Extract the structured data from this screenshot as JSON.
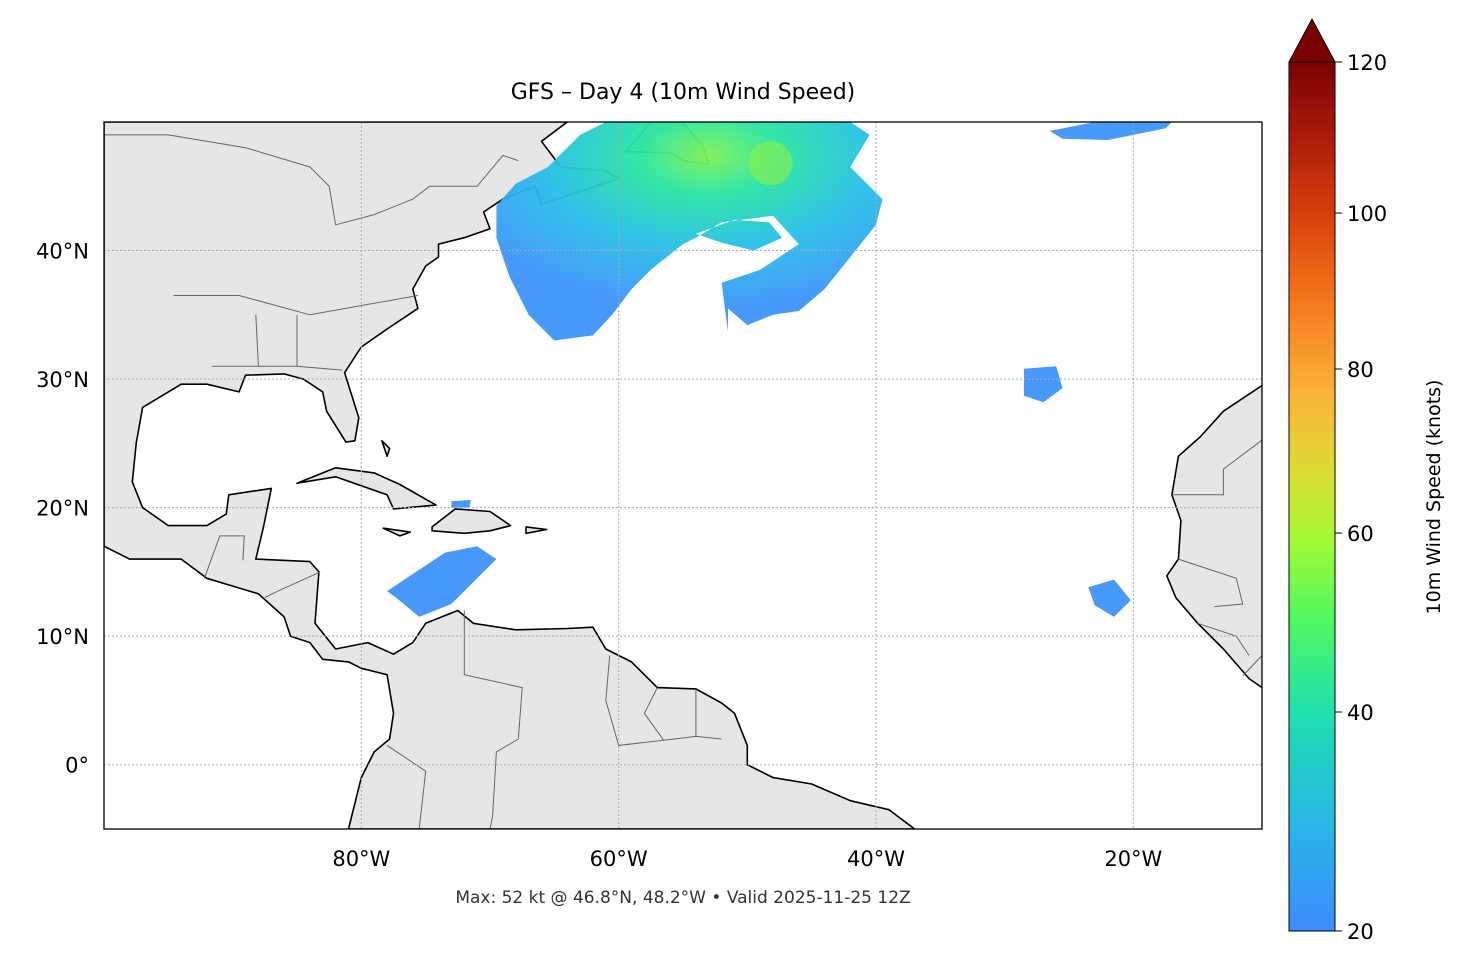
{
  "title": "GFS – Day 4 (10m Wind Speed)",
  "footer": "Max: 52 kt @ 46.8°N, 48.2°W • Valid 2025-11-25 12Z",
  "map": {
    "projection": "PlateCarree",
    "lon_range": [
      -100,
      -10
    ],
    "lat_range": [
      -5,
      50
    ],
    "lon_ticks": [
      {
        "value": -80,
        "label": "80°W"
      },
      {
        "value": -60,
        "label": "60°W"
      },
      {
        "value": -40,
        "label": "40°W"
      },
      {
        "value": -20,
        "label": "20°W"
      }
    ],
    "lat_ticks": [
      {
        "value": 40,
        "label": "40°N"
      },
      {
        "value": 30,
        "label": "30°N"
      },
      {
        "value": 20,
        "label": "20°N"
      },
      {
        "value": 10,
        "label": "10°N"
      },
      {
        "value": 0,
        "label": "0°"
      }
    ],
    "gridlines": true,
    "land_color": "#e6e6e6",
    "coast_color": "#000000",
    "border_color": "#666666",
    "max_wind": {
      "value_kt": 52,
      "lat": 46.8,
      "lon": -48.2
    }
  },
  "colorbar": {
    "label": "10m Wind Speed (knots)",
    "ticks": [
      20,
      40,
      60,
      80,
      100,
      120
    ],
    "range": [
      20,
      120
    ],
    "extend": "max",
    "colormap": "turbo"
  }
}
